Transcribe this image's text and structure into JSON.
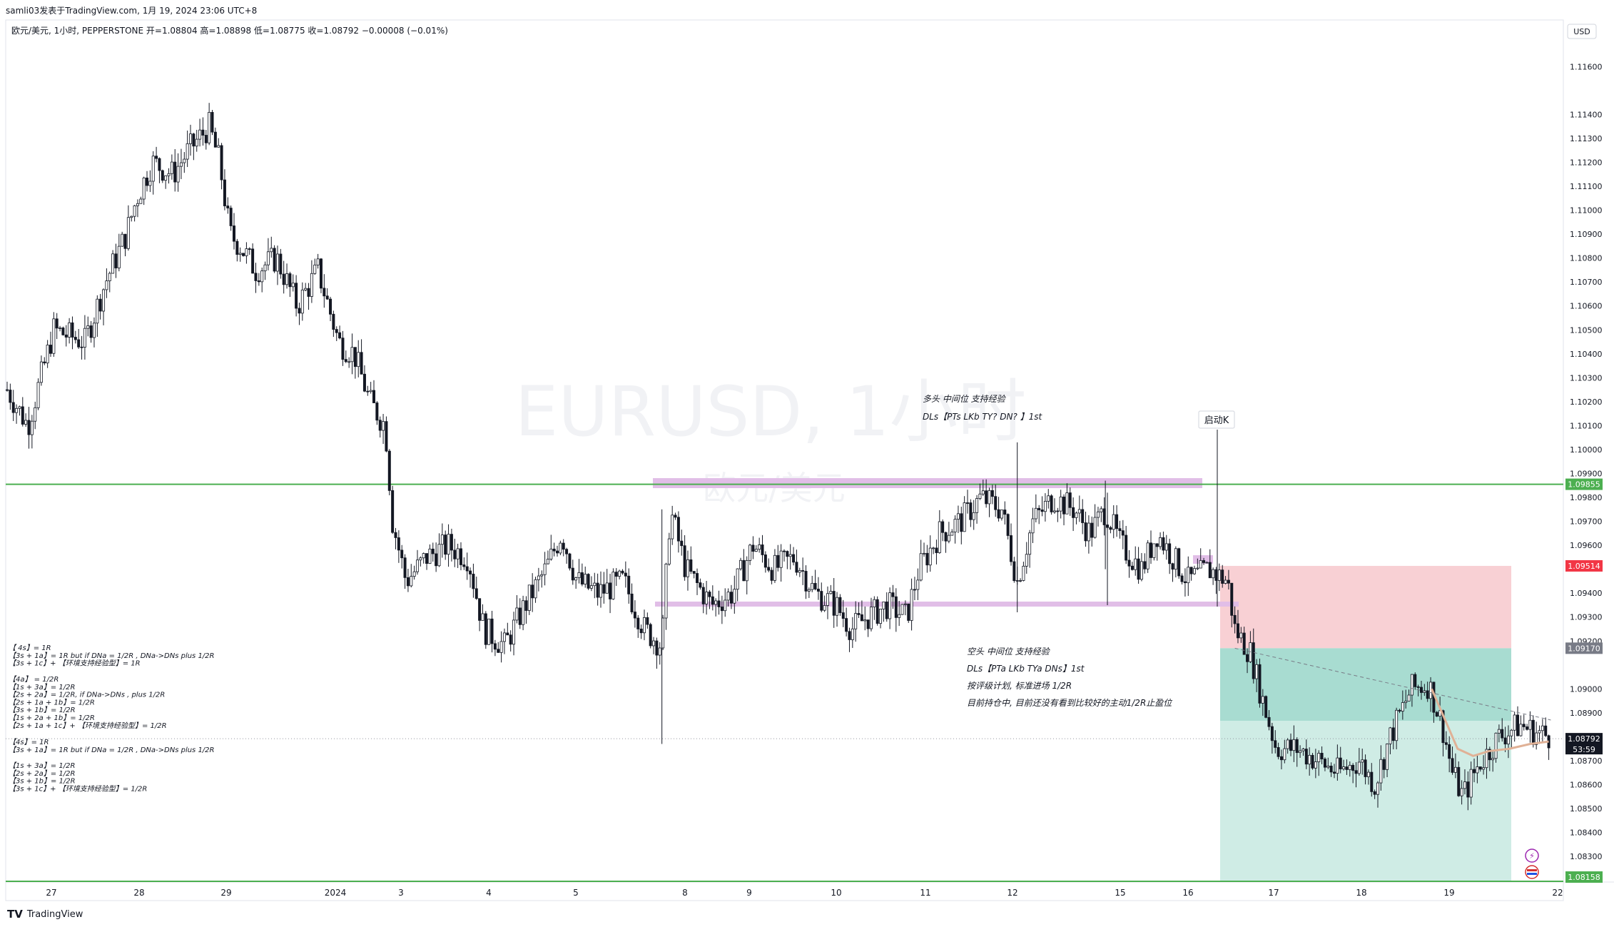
{
  "header": {
    "publisher": "samli03发表于TradingView.com, 1月 19, 2024 23:06 UTC+8"
  },
  "symbol_line": {
    "text": "欧元/美元, 1小时, PEPPERSTONE  开=1.08804  高=1.08898  低=1.08775  收=1.08792  −0.00008 (−0.01%)"
  },
  "currency": "USD",
  "watermark": {
    "main": "EURUSD, 1小时",
    "sub": "欧元/美元"
  },
  "footer": {
    "brand": "TradingView"
  },
  "price_labels": {
    "green_line": "1.09855",
    "stop": "1.09514",
    "entry": "1.09170",
    "current": "1.08792",
    "countdown": "53:59",
    "target": "1.08158"
  },
  "colors": {
    "up": "#ffffff",
    "down": "#131722",
    "green": "#4caf50",
    "red": "#f23645",
    "stop_zone": "#f8d0d4",
    "profit_zone": "#a8dcd1",
    "profit_zone_light": "#cfece5",
    "band": "#e1bee7",
    "entry_label": "#787b86",
    "ma": "#e0b196"
  },
  "annotations": {
    "long_title": "多头 中间位 支持经验",
    "long_detail": "DLs【PTs LKb TY?  DN?  】1st",
    "start_k": "启动K",
    "short_lines": [
      "空头 中间位 支持经验",
      "DLs【PTa LKb TYa DNs】1st",
      "按评级计划, 标准进场 1/2R",
      "目前持仓中, 目前还没有看到比较好的主动1/2R止盈位"
    ],
    "rules_group1": [
      "【 4s】= 1R",
      "【3s + 1a】= 1R but if DNa = 1/2R , DNa->DNs plus 1/2R",
      "【3s + 1c】+ 【环境支持经验型】= 1R"
    ],
    "rules_group2": [
      "【4a】 = 1/2R",
      "【1s + 3a】= 1/2R",
      "【2s + 2a】= 1/2R,  if DNa->DNs , plus 1/2R",
      "【2s + 1a + 1b】= 1/2R",
      "【3s + 1b】= 1/2R",
      "【1s + 2a + 1b】= 1/2R",
      "【2s + 1a + 1c】+ 【环境支持经验型】= 1/2R"
    ],
    "rules_group3": [
      "【4s】= 1R",
      "【3s + 1a】= 1R but if DNa = 1/2R , DNa->DNs plus 1/2R"
    ],
    "rules_group4": [
      "【1s + 3a】= 1/2R",
      "【2s + 2a】= 1/2R",
      "【3s + 1b】= 1/2R",
      "【3s + 1c】+ 【环境支持经验型】= 1/2R"
    ]
  },
  "chart_data": {
    "type": "candlestick",
    "symbol": "欧元/美元",
    "timeframe": "1小时",
    "y_ticks": [
      1.116,
      1.114,
      1.113,
      1.112,
      1.111,
      1.11,
      1.109,
      1.108,
      1.107,
      1.106,
      1.105,
      1.104,
      1.103,
      1.102,
      1.101,
      1.1,
      1.099,
      1.098,
      1.097,
      1.096,
      1.094,
      1.093,
      1.092,
      1.09,
      1.089,
      1.087,
      1.086,
      1.085,
      1.084,
      1.083
    ],
    "y_tick_labels": [
      "1.11600",
      "1.11400",
      "1.11300",
      "1.11200",
      "1.11100",
      "1.11000",
      "1.10900",
      "1.10800",
      "1.10700",
      "1.10600",
      "1.10500",
      "1.10400",
      "1.10300",
      "1.10200",
      "1.10100",
      "1.10000",
      "1.09900",
      "1.09800",
      "1.09700",
      "1.09600",
      "1.09400",
      "1.09300",
      "1.09200",
      "1.09000",
      "1.08900",
      "1.08700",
      "1.08600",
      "1.08500",
      "1.08400",
      "1.08300"
    ],
    "ylim": [
      1.0815,
      1.1175
    ],
    "x_labels": [
      "27",
      "28",
      "29",
      "2024",
      "3",
      "4",
      "5",
      "8",
      "9",
      "10",
      "11",
      "12",
      "15",
      "16",
      "17",
      "18",
      "19",
      "22"
    ],
    "levels": {
      "resistance": 1.09855,
      "stop": 1.09514,
      "entry": 1.0917,
      "current": 1.08792,
      "target": 1.08158
    },
    "key_points": [
      [
        0,
        1.1025
      ],
      [
        20,
        1.101
      ],
      [
        45,
        1.105
      ],
      [
        75,
        1.1045
      ],
      [
        95,
        1.107
      ],
      [
        115,
        1.109
      ],
      [
        125,
        1.1105
      ],
      [
        140,
        1.112
      ],
      [
        160,
        1.1115
      ],
      [
        175,
        1.1125
      ],
      [
        195,
        1.1135
      ],
      [
        205,
        1.112
      ],
      [
        215,
        1.109
      ],
      [
        225,
        1.1085
      ],
      [
        240,
        1.1075
      ],
      [
        260,
        1.108
      ],
      [
        280,
        1.106
      ],
      [
        300,
        1.1075
      ],
      [
        320,
        1.1045
      ],
      [
        335,
        1.104
      ],
      [
        350,
        1.102
      ],
      [
        365,
        1.101
      ],
      [
        372,
        1.097
      ],
      [
        385,
        1.0945
      ],
      [
        405,
        1.0955
      ],
      [
        425,
        1.096
      ],
      [
        445,
        1.0955
      ],
      [
        460,
        1.0925
      ],
      [
        480,
        1.0918
      ],
      [
        500,
        1.0935
      ],
      [
        520,
        1.095
      ],
      [
        535,
        1.0965
      ],
      [
        550,
        1.0945
      ],
      [
        570,
        1.094
      ],
      [
        595,
        1.0945
      ],
      [
        615,
        1.0925
      ],
      [
        632,
        1.0918
      ],
      [
        640,
        1.0975
      ],
      [
        655,
        1.095
      ],
      [
        680,
        1.0935
      ],
      [
        700,
        1.094
      ],
      [
        720,
        1.096
      ],
      [
        740,
        1.095
      ],
      [
        760,
        1.0955
      ],
      [
        780,
        1.094
      ],
      [
        800,
        1.0935
      ],
      [
        815,
        1.0925
      ],
      [
        830,
        1.093
      ],
      [
        850,
        1.0935
      ],
      [
        868,
        1.093
      ],
      [
        880,
        1.095
      ],
      [
        900,
        1.0965
      ],
      [
        920,
        1.097
      ],
      [
        940,
        1.098
      ],
      [
        960,
        1.0975
      ],
      [
        975,
        1.0945
      ],
      [
        990,
        1.097
      ],
      [
        1010,
        1.098
      ],
      [
        1030,
        1.0975
      ],
      [
        1045,
        1.0965
      ],
      [
        1060,
        1.0975
      ],
      [
        1075,
        1.096
      ],
      [
        1095,
        1.095
      ],
      [
        1110,
        1.0965
      ],
      [
        1125,
        1.0955
      ],
      [
        1140,
        1.0945
      ],
      [
        1160,
        1.095
      ],
      [
        1178,
        1.0945
      ],
      [
        1185,
        1.0925
      ],
      [
        1200,
        1.0915
      ],
      [
        1212,
        1.0895
      ],
      [
        1225,
        1.0875
      ],
      [
        1245,
        1.0875
      ],
      [
        1265,
        1.087
      ],
      [
        1285,
        1.0865
      ],
      [
        1305,
        1.087
      ],
      [
        1320,
        1.086
      ],
      [
        1335,
        1.088
      ],
      [
        1355,
        1.09
      ],
      [
        1372,
        1.0902
      ],
      [
        1385,
        1.0885
      ],
      [
        1395,
        1.0865
      ],
      [
        1405,
        1.0855
      ],
      [
        1420,
        1.0868
      ],
      [
        1440,
        1.088
      ],
      [
        1460,
        1.0885
      ],
      [
        1475,
        1.0882
      ],
      [
        1490,
        1.088
      ]
    ],
    "moving_average": [
      [
        1375,
        1.09
      ],
      [
        1390,
        1.0885
      ],
      [
        1400,
        1.0875
      ],
      [
        1415,
        1.0872
      ],
      [
        1430,
        1.0874
      ],
      [
        1450,
        1.0875
      ],
      [
        1470,
        1.0877
      ],
      [
        1488,
        1.0878
      ]
    ],
    "dashed_projection": [
      [
        1185,
        1.0917
      ],
      [
        1490,
        1.0887
      ]
    ]
  }
}
